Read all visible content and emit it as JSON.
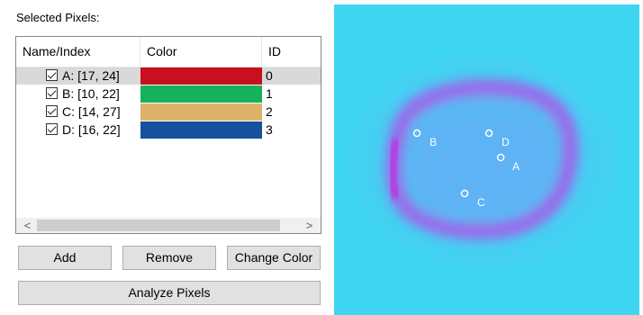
{
  "header_cutoff_text": "' ' ' ' ' ' ' '",
  "panel": {
    "title": "Selected Pixels:",
    "columns": {
      "name": "Name/Index",
      "color": "Color",
      "id": "ID"
    },
    "rows": [
      {
        "name": "A: [17, 24]",
        "color": "#c8101f",
        "id": "0",
        "checked": true,
        "selected": true
      },
      {
        "name": "B: [10, 22]",
        "color": "#14b25a",
        "id": "1",
        "checked": true,
        "selected": false
      },
      {
        "name": "C: [14, 27]",
        "color": "#dfb26a",
        "id": "2",
        "checked": true,
        "selected": false
      },
      {
        "name": "D: [16, 22]",
        "color": "#1850a0",
        "id": "3",
        "checked": true,
        "selected": false
      }
    ],
    "scroll": {
      "left_arrow": "<",
      "right_arrow": ">"
    }
  },
  "buttons": {
    "add": "Add",
    "remove": "Remove",
    "change_color": "Change Color",
    "analyze": "Analyze Pixels"
  },
  "image_view": {
    "background_color": "#3ed6f2",
    "ring_color": "#b24ce8",
    "marker_color": "#ffffff",
    "markers": [
      {
        "label": "A"
      },
      {
        "label": "B"
      },
      {
        "label": "C"
      },
      {
        "label": "D"
      }
    ]
  }
}
